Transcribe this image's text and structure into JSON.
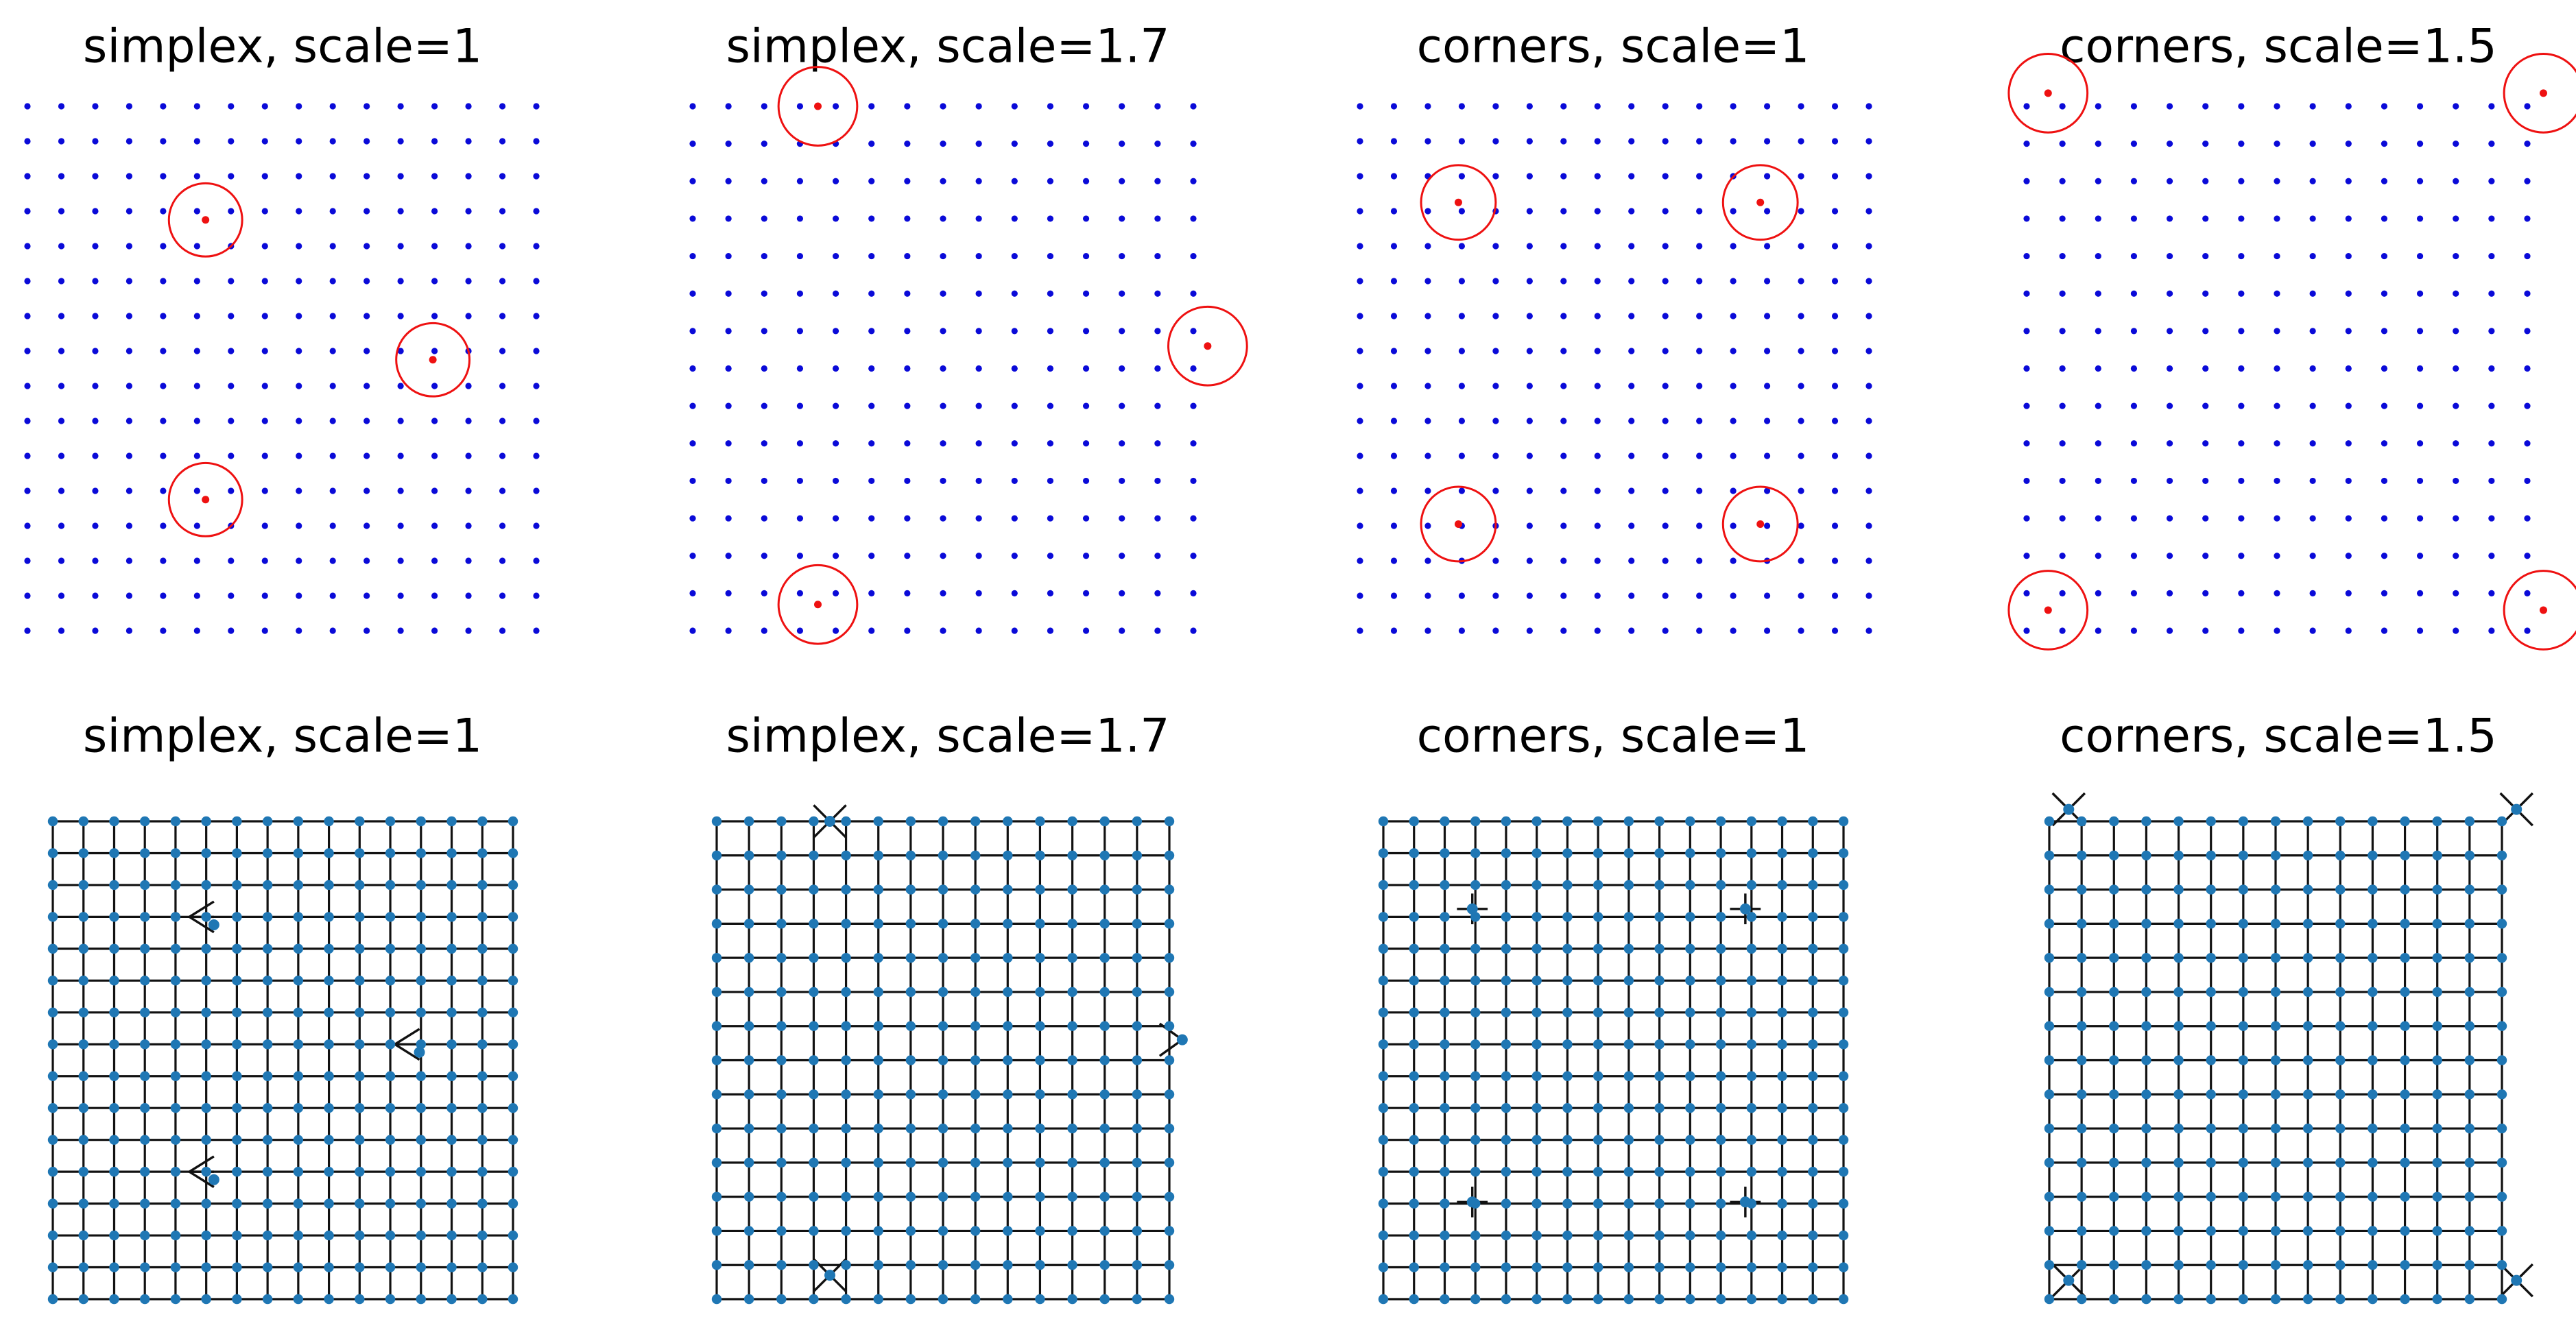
{
  "figure": {
    "panels": [
      {
        "row": "top",
        "title": "simplex, scale=1",
        "grid_size": 16,
        "red_points": [
          [
            5.25,
            11.75
          ],
          [
            11.95,
            7.75
          ],
          [
            5.25,
            3.75
          ]
        ],
        "circle_radius": 1.08
      },
      {
        "row": "top",
        "title": "simplex, scale=1.7",
        "grid_size": 15,
        "red_points": [
          [
            3.5,
            14.0
          ],
          [
            14.4,
            7.6
          ],
          [
            3.5,
            0.7
          ]
        ],
        "circle_radius": 1.1
      },
      {
        "row": "top",
        "title": "corners, scale=1",
        "grid_size": 16,
        "red_points": [
          [
            2.9,
            12.25
          ],
          [
            11.8,
            12.25
          ],
          [
            2.9,
            3.05
          ],
          [
            11.8,
            3.05
          ]
        ],
        "circle_radius": 1.1
      },
      {
        "row": "top",
        "title": "corners, scale=1.5",
        "grid_size": 15,
        "red_points": [
          [
            0.6,
            14.35
          ],
          [
            14.45,
            14.35
          ],
          [
            0.6,
            0.55
          ],
          [
            14.45,
            0.55
          ]
        ],
        "circle_radius": 1.1
      },
      {
        "row": "bottom",
        "title": "simplex, scale=1",
        "grid_size": 16,
        "mesh_nodes": [
          [
            5.25,
            11.75
          ],
          [
            11.95,
            7.75
          ],
          [
            5.25,
            3.75
          ]
        ],
        "distortions": [
          [
            4.75,
            12.0,
            "tri-left"
          ],
          [
            11.45,
            8.0,
            "tri-left"
          ],
          [
            4.75,
            4.0,
            "tri-left"
          ]
        ]
      },
      {
        "row": "bottom",
        "title": "simplex, scale=1.7",
        "grid_size": 15,
        "mesh_nodes": [
          [
            3.5,
            14.0
          ],
          [
            14.4,
            7.6
          ],
          [
            3.5,
            0.7
          ]
        ],
        "distortions": [
          [
            3.5,
            14.0,
            "x-cross"
          ],
          [
            14.2,
            7.6,
            "chevron-right"
          ],
          [
            3.5,
            0.7,
            "x-cross"
          ]
        ]
      },
      {
        "row": "bottom",
        "title": "corners, scale=1",
        "grid_size": 16,
        "mesh_nodes": [
          [
            2.9,
            12.25
          ],
          [
            11.8,
            12.25
          ],
          [
            2.9,
            3.05
          ],
          [
            11.8,
            3.05
          ]
        ],
        "distortions": [
          [
            2.9,
            12.25,
            "pinch"
          ],
          [
            11.8,
            12.25,
            "pinch"
          ],
          [
            2.9,
            3.05,
            "pinch"
          ],
          [
            11.8,
            3.05,
            "pinch"
          ]
        ]
      },
      {
        "row": "bottom",
        "title": "corners, scale=1.5",
        "grid_size": 15,
        "mesh_nodes": [
          [
            0.6,
            14.35
          ],
          [
            14.45,
            14.35
          ],
          [
            0.6,
            0.55
          ],
          [
            14.45,
            0.55
          ]
        ],
        "distortions": [
          [
            0.6,
            14.35,
            "x-cross"
          ],
          [
            14.45,
            14.35,
            "x-cross"
          ],
          [
            0.6,
            0.55,
            "x-cross"
          ],
          [
            14.45,
            0.55,
            "x-cross"
          ]
        ]
      }
    ],
    "colors": {
      "grid_point": "#0a0ad8",
      "sample_point": "#ee1111",
      "circle": "#ee1111",
      "mesh_line": "#111111",
      "mesh_node": "#1f77b4"
    }
  }
}
